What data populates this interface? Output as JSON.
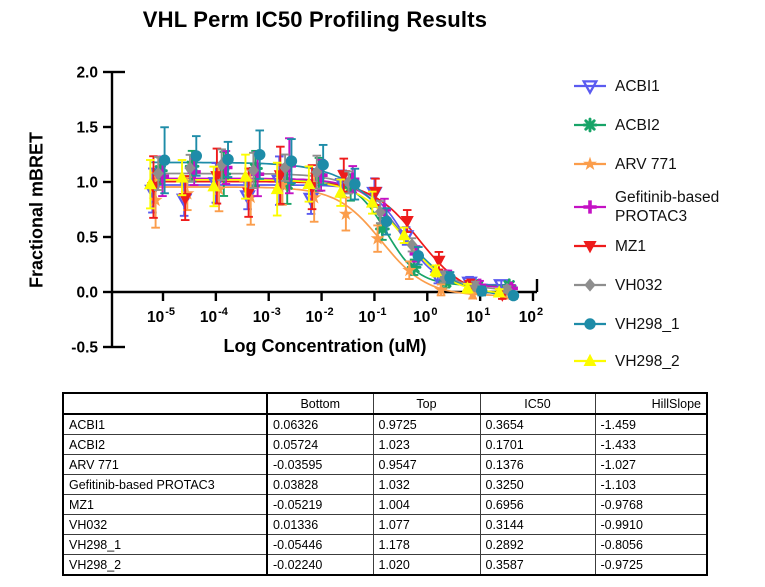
{
  "chart_data": {
    "type": "scatter",
    "title": "VHL Perm IC50 Profiling Results",
    "xlabel": "Log Concentration (uM)",
    "ylabel": "Fractional mBRET",
    "x_scale": "log10",
    "xlim_log": [
      -5.65,
      2.05
    ],
    "ylim": [
      -0.5,
      2.0
    ],
    "yticks": [
      2.0,
      1.5,
      1.0,
      0.5,
      0.0,
      -0.5
    ],
    "xtick_exponents": [
      -5,
      -4,
      -3,
      -2,
      -1,
      0,
      1,
      2
    ],
    "grid": false,
    "legend_position": "right",
    "model": "four-parameter-logistic: y = bottom + (top-bottom)/(1+10^((log10(ic50)-logx)*hillslope))",
    "x_log_points": [
      -5.1,
      -4.5,
      -3.9,
      -3.3,
      -2.7,
      -2.1,
      -1.5,
      -0.9,
      -0.3,
      0.3,
      0.9,
      1.5
    ],
    "series": [
      {
        "name": "ACBI1",
        "color": "#5B5BF0",
        "marker": "triangle-down-open",
        "fit": {
          "bottom": 0.06326,
          "top": 0.9725,
          "ic50": 0.3654,
          "hillslope": -1.459
        },
        "jitter": -0.1,
        "noise": [
          -0.05,
          -0.13,
          0.02,
          -0.1,
          0.04,
          -0.12,
          0.03,
          0.05,
          0.02,
          -0.02,
          0.01,
          0.0
        ],
        "err": [
          0.2,
          0.15,
          0.18,
          0.12,
          0.22,
          0.14,
          0.12,
          0.13,
          0.08,
          0.06,
          0.05,
          0.04
        ]
      },
      {
        "name": "ACBI2",
        "color": "#18A468",
        "marker": "asterisk",
        "fit": {
          "bottom": 0.05724,
          "top": 1.023,
          "ic50": 0.1701,
          "hillslope": -1.433
        },
        "jitter": 0.05,
        "noise": [
          0.08,
          0.12,
          0.05,
          0.1,
          -0.04,
          0.06,
          0.02,
          -0.03,
          0.02,
          0.01,
          -0.01,
          0.0
        ],
        "err": [
          0.12,
          0.14,
          0.2,
          0.16,
          0.18,
          0.15,
          0.12,
          0.1,
          0.07,
          0.05,
          0.04,
          0.03
        ]
      },
      {
        "name": "ARV 771",
        "color": "#FB9D4B",
        "marker": "star",
        "fit": {
          "bottom": -0.03595,
          "top": 0.9547,
          "ic50": 0.1376,
          "hillslope": -1.027
        },
        "jitter": -0.04,
        "noise": [
          -0.12,
          -0.06,
          -0.02,
          -0.09,
          0.03,
          -0.05,
          -0.08,
          -0.02,
          0.01,
          -0.01,
          0.0,
          0.01
        ],
        "err": [
          0.25,
          0.15,
          0.2,
          0.25,
          0.18,
          0.22,
          0.15,
          0.12,
          0.08,
          0.05,
          0.04,
          0.03
        ]
      },
      {
        "name": "Gefitinib-based PROTAC3",
        "color": "#C411C4",
        "marker": "plus",
        "fit": {
          "bottom": 0.03828,
          "top": 1.032,
          "ic50": 0.325,
          "hillslope": -1.103
        },
        "jitter": 0.09,
        "noise": [
          0.02,
          0.06,
          0.1,
          0.04,
          0.12,
          0.05,
          0.08,
          0.02,
          -0.02,
          0.01,
          0.0,
          -0.01
        ],
        "err": [
          0.18,
          0.12,
          0.15,
          0.2,
          0.25,
          0.14,
          0.12,
          0.1,
          0.07,
          0.05,
          0.04,
          0.03
        ]
      },
      {
        "name": "MZ1",
        "color": "#EE1B1B",
        "marker": "triangle-down",
        "fit": {
          "bottom": -0.05219,
          "top": 1.004,
          "ic50": 0.6956,
          "hillslope": -0.9768
        },
        "jitter": -0.08,
        "noise": [
          -0.05,
          -0.15,
          0.05,
          -0.1,
          0.06,
          -0.04,
          0.1,
          0.05,
          0.04,
          0.02,
          0.01,
          0.0
        ],
        "err": [
          0.28,
          0.2,
          0.25,
          0.22,
          0.26,
          0.2,
          0.15,
          0.12,
          0.1,
          0.08,
          0.05,
          0.04
        ]
      },
      {
        "name": "VH032",
        "color": "#8E8E8E",
        "marker": "diamond",
        "fit": {
          "bottom": 0.01336,
          "top": 1.077,
          "ic50": 0.3144,
          "hillslope": -0.991
        },
        "jitter": 0.01,
        "noise": [
          0.0,
          0.05,
          0.08,
          0.03,
          0.06,
          0.04,
          0.02,
          -0.04,
          0.01,
          -0.02,
          0.0,
          0.0
        ],
        "err": [
          0.15,
          0.12,
          0.14,
          0.16,
          0.12,
          0.15,
          0.1,
          0.1,
          0.06,
          0.05,
          0.04,
          0.03
        ]
      },
      {
        "name": "VH298_1",
        "color": "#1E8CA8",
        "marker": "circle",
        "fit": {
          "bottom": -0.05446,
          "top": 1.178,
          "ic50": 0.2892,
          "hillslope": -0.8056
        },
        "jitter": 0.13,
        "noise": [
          0.02,
          0.06,
          0.03,
          0.08,
          0.04,
          0.06,
          0.02,
          -0.05,
          -0.03,
          0.01,
          0.0,
          0.0
        ],
        "err": [
          0.3,
          0.18,
          0.16,
          0.22,
          0.2,
          0.18,
          0.14,
          0.12,
          0.08,
          0.05,
          0.04,
          0.03
        ]
      },
      {
        "name": "VH298_2",
        "color": "#FCFC00",
        "marker": "triangle-up",
        "fit": {
          "bottom": -0.0224,
          "top": 1.02,
          "ic50": 0.3587,
          "hillslope": -0.9725
        },
        "jitter": -0.14,
        "noise": [
          -0.04,
          0.02,
          -0.06,
          0.03,
          -0.08,
          -0.02,
          -0.05,
          0.01,
          0.02,
          0.0,
          -0.01,
          0.0
        ],
        "err": [
          0.22,
          0.16,
          0.18,
          0.2,
          0.24,
          0.16,
          0.12,
          0.1,
          0.07,
          0.05,
          0.04,
          0.03
        ]
      }
    ]
  },
  "table": {
    "headers": [
      "",
      "Bottom",
      "Top",
      "IC50",
      "HillSlope"
    ],
    "rows": [
      [
        "ACBI1",
        "0.06326",
        "0.9725",
        "0.3654",
        "-1.459"
      ],
      [
        "ACBI2",
        "0.05724",
        "1.023",
        "0.1701",
        "-1.433"
      ],
      [
        "ARV 771",
        "-0.03595",
        "0.9547",
        "0.1376",
        "-1.027"
      ],
      [
        "Gefitinib-based PROTAC3",
        "0.03828",
        "1.032",
        "0.3250",
        "-1.103"
      ],
      [
        "MZ1",
        "-0.05219",
        "1.004",
        "0.6956",
        "-0.9768"
      ],
      [
        "VH032",
        "0.01336",
        "1.077",
        "0.3144",
        "-0.9910"
      ],
      [
        "VH298_1",
        "-0.05446",
        "1.178",
        "0.2892",
        "-0.8056"
      ],
      [
        "VH298_2",
        "-0.02240",
        "1.020",
        "0.3587",
        "-0.9725"
      ]
    ]
  }
}
